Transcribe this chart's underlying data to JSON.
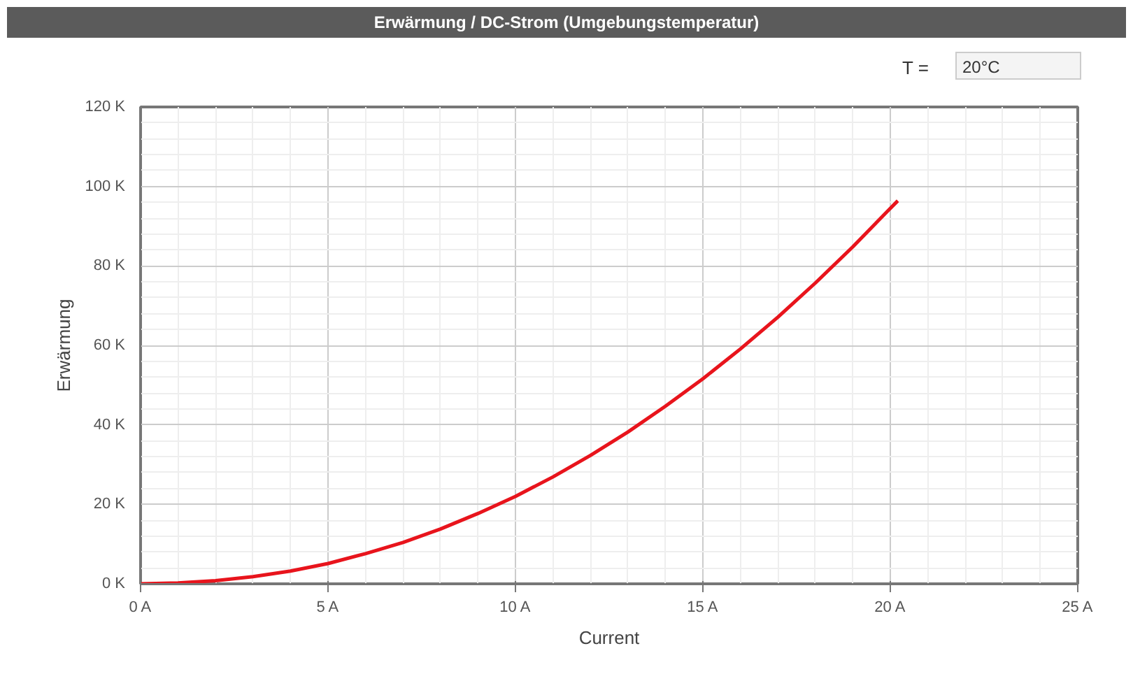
{
  "chart_data": {
    "type": "line",
    "title": "Erwärmung / DC-Strom (Umgebungstemperatur)",
    "xlabel": "Current",
    "ylabel": "Erwärmung",
    "annotations": [
      "T =",
      "20°C"
    ],
    "x": [
      0,
      1,
      2,
      3,
      4,
      5,
      6,
      7,
      8,
      9,
      10,
      11,
      12,
      13,
      14,
      15,
      16,
      17,
      18,
      19,
      20,
      20.2
    ],
    "series": [
      {
        "color": "#e8141c",
        "values": [
          0,
          0.2,
          0.8,
          1.8,
          3.2,
          5.1,
          7.6,
          10.4,
          13.8,
          17.7,
          22.0,
          26.9,
          32.3,
          38.2,
          44.7,
          51.6,
          59.1,
          67.1,
          75.7,
          84.8,
          94.5,
          96.4
        ]
      }
    ],
    "xlim": [
      0,
      25
    ],
    "ylim": [
      0,
      120
    ],
    "xticks": [
      {
        "value": 0,
        "label": "0 A"
      },
      {
        "value": 5,
        "label": "5 A"
      },
      {
        "value": 10,
        "label": "10 A"
      },
      {
        "value": 15,
        "label": "15 A"
      },
      {
        "value": 20,
        "label": "20 A"
      },
      {
        "value": 25,
        "label": "25 A"
      }
    ],
    "yticks": [
      {
        "value": 0,
        "label": "0 K"
      },
      {
        "value": 20,
        "label": "20 K"
      },
      {
        "value": 40,
        "label": "40 K"
      },
      {
        "value": 60,
        "label": "60 K"
      },
      {
        "value": 80,
        "label": "80 K"
      },
      {
        "value": 100,
        "label": "100 K"
      },
      {
        "value": 120,
        "label": "120 K"
      }
    ],
    "grid": true,
    "marker": "none",
    "line_style": "solid"
  }
}
